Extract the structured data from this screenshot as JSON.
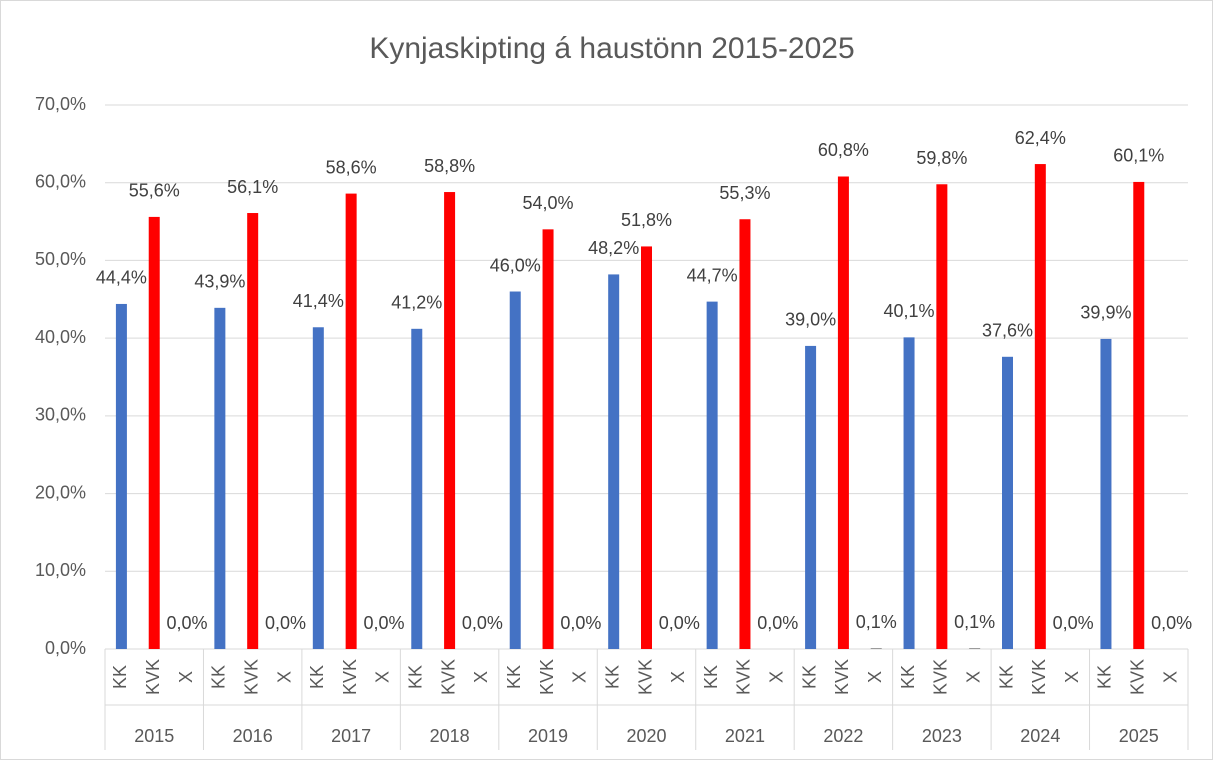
{
  "chart_data": {
    "type": "bar",
    "title": "Kynjaskipting á haustönn 2015-2025",
    "categories": [
      "2015",
      "2016",
      "2017",
      "2018",
      "2019",
      "2020",
      "2021",
      "2022",
      "2023",
      "2024",
      "2025"
    ],
    "series": [
      {
        "name": "KK",
        "color": "#4472c4",
        "values": [
          44.4,
          43.9,
          41.4,
          41.2,
          46.0,
          48.2,
          44.7,
          39.0,
          40.1,
          37.6,
          39.9
        ],
        "value_labels": [
          "44,4%",
          "43,9%",
          "41,4%",
          "41,2%",
          "46,0%",
          "48,2%",
          "44,7%",
          "39,0%",
          "40,1%",
          "37,6%",
          "39,9%"
        ]
      },
      {
        "name": "KVK",
        "color": "#ff0000",
        "values": [
          55.6,
          56.1,
          58.6,
          58.8,
          54.0,
          51.8,
          55.3,
          60.8,
          59.8,
          62.4,
          60.1
        ],
        "value_labels": [
          "55,6%",
          "56,1%",
          "58,6%",
          "58,8%",
          "54,0%",
          "51,8%",
          "55,3%",
          "60,8%",
          "59,8%",
          "62,4%",
          "60,1%"
        ]
      },
      {
        "name": "X",
        "color": "#7f7f7f",
        "values": [
          0,
          0,
          0,
          0,
          0,
          0,
          0,
          0.1,
          0.1,
          0,
          0
        ],
        "value_labels": [
          "0,0%",
          "0,0%",
          "0,0%",
          "0,0%",
          "0,0%",
          "0,0%",
          "0,0%",
          "0,1%",
          "0,1%",
          "0,0%",
          "0,0%"
        ]
      }
    ],
    "ylim": [
      0,
      70
    ],
    "yticks": [
      {
        "value": 0,
        "label": "0,0%"
      },
      {
        "value": 10,
        "label": "10,0%"
      },
      {
        "value": 20,
        "label": "20,0%"
      },
      {
        "value": 30,
        "label": "30,0%"
      },
      {
        "value": 40,
        "label": "40,0%"
      },
      {
        "value": 50,
        "label": "50,0%"
      },
      {
        "value": 60,
        "label": "60,0%"
      },
      {
        "value": 70,
        "label": "70,0%"
      }
    ],
    "grid": true
  }
}
